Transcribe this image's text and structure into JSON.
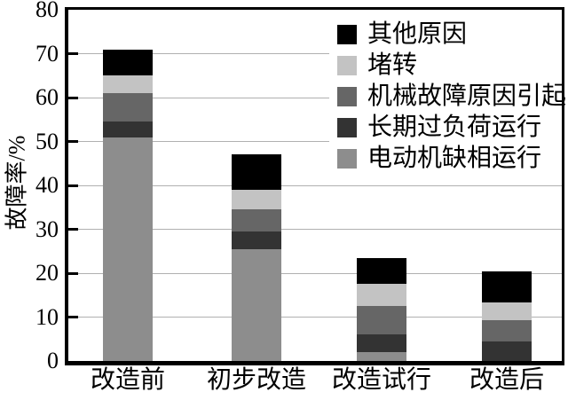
{
  "chart_data": {
    "type": "bar",
    "stacked": true,
    "title": "",
    "ylabel": "故障率/%",
    "xlabel": "",
    "ylim": [
      0,
      80
    ],
    "yticks": [
      0,
      10,
      20,
      30,
      40,
      50,
      60,
      70,
      80
    ],
    "grid": true,
    "grid_color": "#b0b0b0",
    "axis_color": "#000000",
    "background_color": "#ffffff",
    "legend_position": "top-right-inside",
    "categories": [
      "改造前",
      "初步改造",
      "改造试行",
      "改造后"
    ],
    "series": [
      {
        "name": "电动机缺相运行",
        "color": "#8d8d8d",
        "values": [
          51,
          25.5,
          2,
          0
        ]
      },
      {
        "name": "长期过负荷运行",
        "color": "#333333",
        "values": [
          3.5,
          4,
          4,
          4.5
        ]
      },
      {
        "name": "机械故障原因引起",
        "color": "#666666",
        "values": [
          6.5,
          5,
          6.5,
          4.8
        ]
      },
      {
        "name": "堵转",
        "color": "#c3c3c3",
        "values": [
          4,
          4.5,
          5,
          4
        ]
      },
      {
        "name": "其他原因",
        "color": "#000000",
        "values": [
          6,
          8,
          6,
          7.2
        ]
      }
    ],
    "totals": [
      71,
      47,
      23.5,
      20.5
    ],
    "legend_order": [
      "其他原因",
      "堵转",
      "机械故障原因引起",
      "长期过负荷运行",
      "电动机缺相运行"
    ]
  }
}
